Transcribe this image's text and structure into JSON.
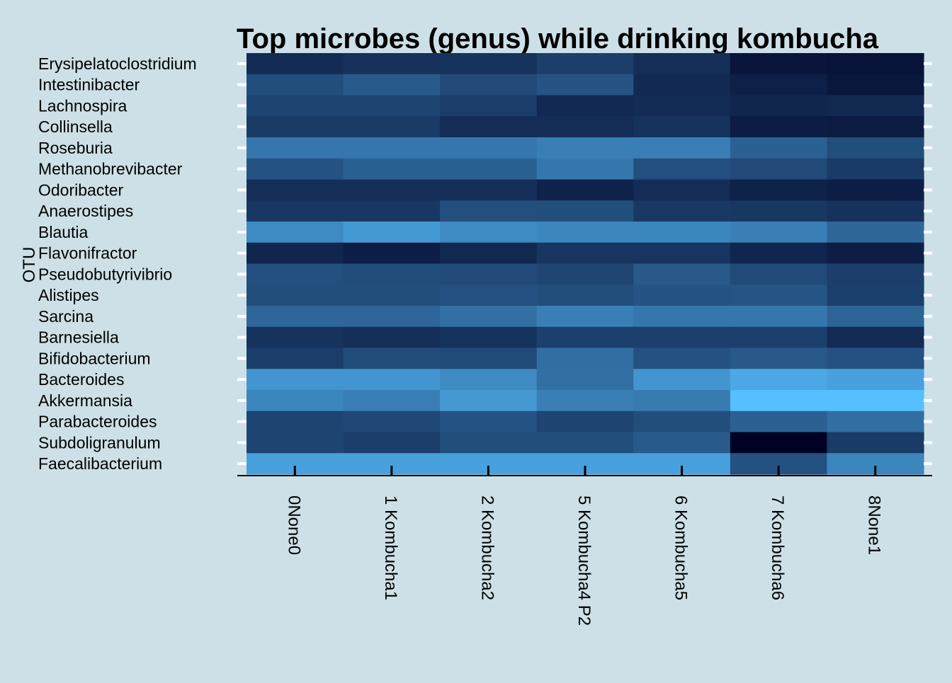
{
  "chart_data": {
    "type": "heatmap",
    "title": "Top microbes (genus) while drinking kombucha",
    "xlabel": "",
    "ylabel": "OTU",
    "legend": "none",
    "grid": false,
    "x_categories": [
      "0None0",
      "1 Kombucha1",
      "2 Kombucha2",
      "5 Kombucha4 P2",
      "6 Kombucha5",
      "7 Kombucha6",
      "8None1"
    ],
    "y_categories": [
      "Erysipelatoclostridium",
      "Intestinibacter",
      "Lachnospira",
      "Collinsella",
      "Roseburia",
      "Methanobrevibacter",
      "Odoribacter",
      "Anaerostipes",
      "Blautia",
      "Flavonifractor",
      "Pseudobutyrivibrio",
      "Alistipes",
      "Sarcina",
      "Barnesiella",
      "Bifidobacterium",
      "Bacteroides",
      "Akkermansia",
      "Parabacteroides",
      "Subdoligranulum",
      "Faecalibacterium"
    ],
    "value_note": "relative intensity 0 (darkest) to 1 (lightest), read from cell colour",
    "values": [
      [
        0.22,
        0.25,
        0.26,
        0.32,
        0.24,
        0.1,
        0.09
      ],
      [
        0.4,
        0.47,
        0.38,
        0.43,
        0.21,
        0.16,
        0.11
      ],
      [
        0.35,
        0.35,
        0.31,
        0.21,
        0.22,
        0.19,
        0.2
      ],
      [
        0.3,
        0.3,
        0.23,
        0.23,
        0.26,
        0.14,
        0.13
      ],
      [
        0.62,
        0.62,
        0.62,
        0.66,
        0.66,
        0.5,
        0.4
      ],
      [
        0.43,
        0.5,
        0.5,
        0.62,
        0.41,
        0.38,
        0.3
      ],
      [
        0.24,
        0.24,
        0.24,
        0.17,
        0.23,
        0.17,
        0.15
      ],
      [
        0.28,
        0.28,
        0.41,
        0.4,
        0.29,
        0.28,
        0.25
      ],
      [
        0.72,
        0.8,
        0.72,
        0.7,
        0.7,
        0.66,
        0.53
      ],
      [
        0.19,
        0.15,
        0.2,
        0.27,
        0.27,
        0.19,
        0.15
      ],
      [
        0.41,
        0.39,
        0.38,
        0.36,
        0.46,
        0.38,
        0.32
      ],
      [
        0.4,
        0.4,
        0.42,
        0.4,
        0.43,
        0.44,
        0.33
      ],
      [
        0.53,
        0.53,
        0.58,
        0.66,
        0.62,
        0.62,
        0.52
      ],
      [
        0.26,
        0.24,
        0.26,
        0.33,
        0.33,
        0.33,
        0.22
      ],
      [
        0.31,
        0.39,
        0.38,
        0.57,
        0.42,
        0.46,
        0.42
      ],
      [
        0.78,
        0.78,
        0.72,
        0.58,
        0.78,
        0.88,
        0.84
      ],
      [
        0.7,
        0.66,
        0.8,
        0.66,
        0.64,
        1.0,
        1.0
      ],
      [
        0.35,
        0.37,
        0.43,
        0.35,
        0.4,
        0.5,
        0.57
      ],
      [
        0.35,
        0.32,
        0.4,
        0.4,
        0.47,
        0.0,
        0.3
      ],
      [
        0.84,
        0.84,
        0.84,
        0.84,
        0.84,
        0.42,
        0.7
      ]
    ],
    "color_low": "#000225",
    "color_high": "#56bfff"
  }
}
